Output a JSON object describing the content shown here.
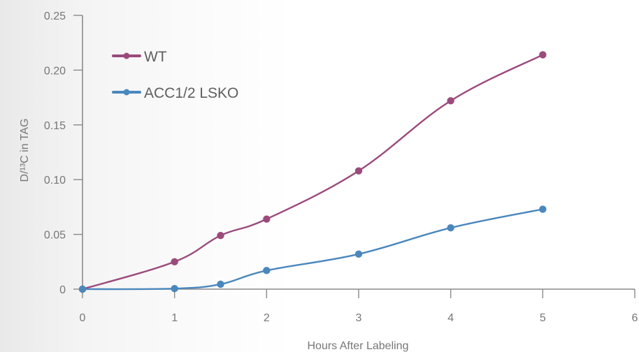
{
  "chart_data": {
    "type": "line",
    "xlabel": "Hours After Labeling",
    "ylabel": "D/¹³C in TAG",
    "xlim": [
      0,
      6
    ],
    "ylim": [
      0,
      0.25
    ],
    "xticks": [
      0,
      1,
      2,
      3,
      4,
      5,
      6
    ],
    "yticks": [
      0,
      0.05,
      0.1,
      0.15,
      0.2,
      0.25
    ],
    "ytick_labels": [
      "0",
      "0.05",
      "0.10",
      "0.15",
      "0.20",
      "0.25"
    ],
    "grid": false,
    "legend_position": "top-left",
    "series": [
      {
        "name": "WT",
        "color": "#9b4a7c",
        "x": [
          0,
          1,
          1.5,
          2,
          3,
          4,
          5
        ],
        "y": [
          0,
          0.025,
          0.049,
          0.064,
          0.108,
          0.172,
          0.214
        ]
      },
      {
        "name": "ACC1/2 LSKO",
        "color": "#4a87bd",
        "x": [
          0,
          1,
          1.5,
          2,
          3,
          4,
          5
        ],
        "y": [
          0,
          0.0005,
          0.0045,
          0.017,
          0.032,
          0.056,
          0.073
        ]
      }
    ]
  }
}
